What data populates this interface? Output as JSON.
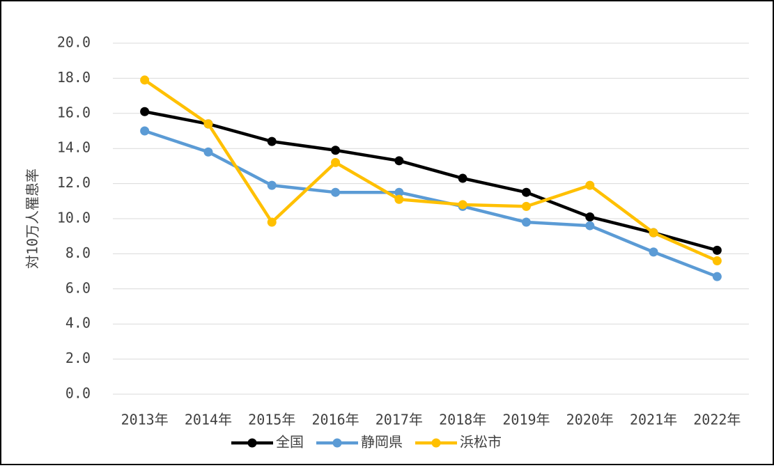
{
  "chart_data": {
    "type": "line",
    "y_label": "対10万人罹患率",
    "categories": [
      "2013年",
      "2014年",
      "2015年",
      "2016年",
      "2017年",
      "2018年",
      "2019年",
      "2020年",
      "2021年",
      "2022年"
    ],
    "series": [
      {
        "name": "全国",
        "color": "#000000",
        "values": [
          16.1,
          15.4,
          14.4,
          13.9,
          13.3,
          12.3,
          11.5,
          10.1,
          9.2,
          8.2
        ]
      },
      {
        "name": "静岡県",
        "color": "#5b9bd5",
        "values": [
          15.0,
          13.8,
          11.9,
          11.5,
          11.5,
          10.7,
          9.8,
          9.6,
          8.1,
          6.7
        ]
      },
      {
        "name": "浜松市",
        "color": "#ffc000",
        "values": [
          17.9,
          15.4,
          9.8,
          13.2,
          11.1,
          10.8,
          10.7,
          11.9,
          9.2,
          7.6
        ]
      }
    ],
    "ylim": [
      0,
      20
    ],
    "yticks": [
      {
        "value": 0,
        "label": "0.0"
      },
      {
        "value": 2,
        "label": "2.0"
      },
      {
        "value": 4,
        "label": "4.0"
      },
      {
        "value": 6,
        "label": "6.0"
      },
      {
        "value": 8,
        "label": "8.0"
      },
      {
        "value": 10,
        "label": "10.0"
      },
      {
        "value": 12,
        "label": "12.0"
      },
      {
        "value": 14,
        "label": "14.0"
      },
      {
        "value": 16,
        "label": "16.0"
      },
      {
        "value": 18,
        "label": "18.0"
      },
      {
        "value": 20,
        "label": "20.0"
      }
    ],
    "grid": true,
    "legend": "bottom"
  }
}
